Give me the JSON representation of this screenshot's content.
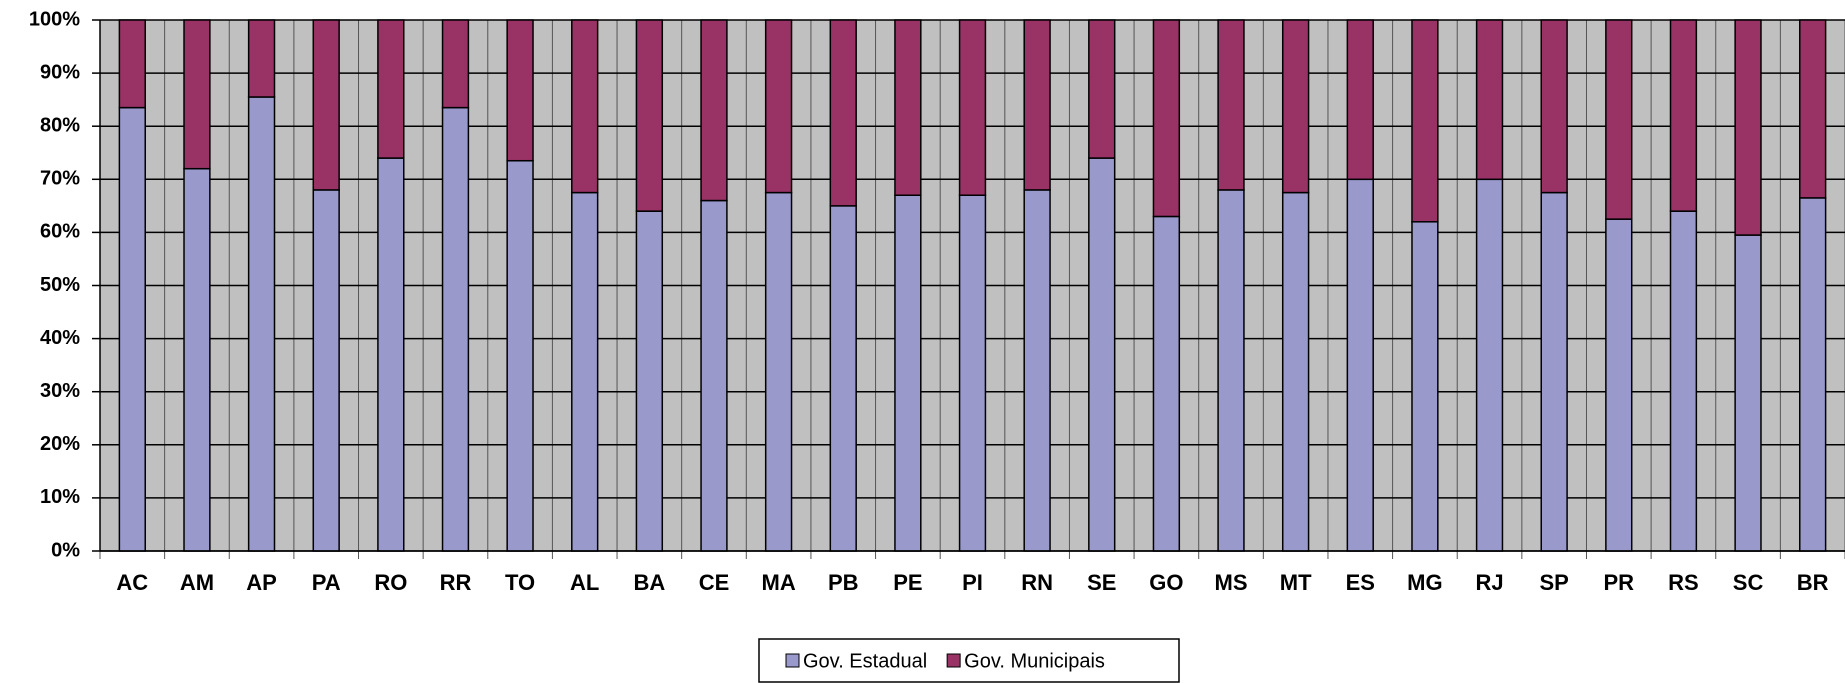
{
  "chart_data": {
    "type": "stacked_bar_percent",
    "categories": [
      "AC",
      "AM",
      "AP",
      "PA",
      "RO",
      "RR",
      "TO",
      "AL",
      "BA",
      "CE",
      "MA",
      "PB",
      "PE",
      "PI",
      "RN",
      "SE",
      "GO",
      "MS",
      "MT",
      "ES",
      "MG",
      "RJ",
      "SP",
      "PR",
      "RS",
      "SC",
      "BR"
    ],
    "series": [
      {
        "name": "Gov. Estadual",
        "color": "#9999cc",
        "values": [
          83.5,
          72,
          85.5,
          68,
          74,
          83.5,
          73.5,
          67.5,
          64,
          66,
          67.5,
          65,
          67,
          67,
          68,
          74,
          63,
          68,
          67.5,
          70,
          62,
          70,
          67.5,
          62.5,
          64,
          59.5,
          66.5
        ]
      },
      {
        "name": "Gov. Municipais",
        "color": "#993366",
        "values": [
          16.5,
          28,
          14.5,
          32,
          26,
          16.5,
          26.5,
          32.5,
          36,
          34,
          32.5,
          35,
          33,
          33,
          32,
          26,
          37,
          32,
          32.5,
          30,
          38,
          30,
          32.5,
          37.5,
          36,
          40.5,
          33.5
        ]
      }
    ],
    "ylim": [
      0,
      100
    ],
    "yticks": [
      {
        "value": 0,
        "label": "0%"
      },
      {
        "value": 10,
        "label": "10%"
      },
      {
        "value": 20,
        "label": "20%"
      },
      {
        "value": 30,
        "label": "30%"
      },
      {
        "value": 40,
        "label": "40%"
      },
      {
        "value": 50,
        "label": "50%"
      },
      {
        "value": 60,
        "label": "60%"
      },
      {
        "value": 70,
        "label": "70%"
      },
      {
        "value": 80,
        "label": "80%"
      },
      {
        "value": 90,
        "label": "90%"
      },
      {
        "value": 100,
        "label": "100%"
      }
    ],
    "grid": true,
    "plot_background": "#c0c0c0"
  }
}
